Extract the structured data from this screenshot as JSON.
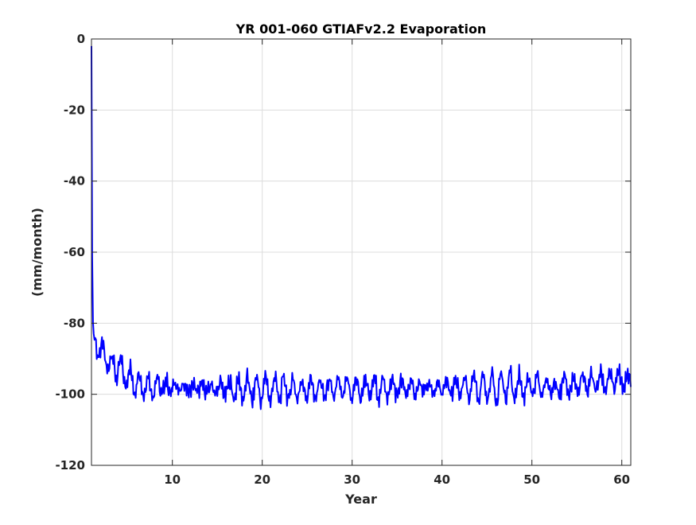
{
  "chart_data": {
    "type": "line",
    "title": "YR 001-060 GTIAFv2.2 Evaporation",
    "xlabel": "Year",
    "ylabel": "(mm/month)",
    "xlim": [
      1,
      61
    ],
    "ylim": [
      -120,
      0
    ],
    "xticks": [
      10,
      20,
      30,
      40,
      50,
      60
    ],
    "yticks": [
      0,
      -20,
      -40,
      -60,
      -80,
      -100,
      -120
    ],
    "grid": true,
    "line_color": "#0000ff",
    "series": [
      {
        "x": [
          1.0,
          1.02,
          1.05,
          1.08,
          1.12,
          1.17,
          1.25,
          1.35,
          1.5,
          1.7,
          2.0,
          2.3,
          2.6,
          3.0,
          3.5,
          4.0,
          4.5,
          5.0,
          5.5,
          6.0,
          6.5,
          7.0,
          7.5,
          8.0,
          8.5,
          9.0,
          9.5,
          10.0,
          11.0,
          12.0,
          13.0,
          14.0,
          15.0,
          16.0,
          17.0,
          18.0,
          19.0,
          20.0,
          21.0,
          22.0,
          23.0,
          24.0,
          25.0,
          26.0,
          27.0,
          28.0,
          29.0,
          30.0,
          31.0,
          32.0,
          33.0,
          34.0,
          35.0,
          36.0,
          37.0,
          38.0,
          39.0,
          40.0,
          41.0,
          42.0,
          43.0,
          44.0,
          45.0,
          46.0,
          47.0,
          48.0,
          49.0,
          50.0,
          51.0,
          52.0,
          53.0,
          54.0,
          55.0,
          56.0,
          57.0,
          58.0,
          59.0,
          60.0,
          61.0
        ],
        "y": [
          -2,
          -10,
          -35,
          -60,
          -75,
          -80,
          -83,
          -85,
          -86,
          -87,
          -88,
          -89,
          -90,
          -91,
          -92,
          -93,
          -94,
          -95,
          -96,
          -96.5,
          -97,
          -97.3,
          -97.5,
          -97.7,
          -97.8,
          -97.9,
          -98,
          -98,
          -98.2,
          -98.3,
          -98.4,
          -98.5,
          -98.5,
          -98.6,
          -98.6,
          -98.6,
          -98.6,
          -98.5,
          -98.5,
          -98.5,
          -98.5,
          -98.5,
          -98.5,
          -98.6,
          -98.6,
          -98.6,
          -98.6,
          -98.5,
          -98.5,
          -98.4,
          -98.3,
          -98.2,
          -98.2,
          -98.2,
          -98.3,
          -98.4,
          -98.4,
          -98.4,
          -98.4,
          -98.3,
          -98.2,
          -98.1,
          -98.0,
          -97.9,
          -97.8,
          -97.8,
          -97.8,
          -97.9,
          -98.0,
          -98.0,
          -97.9,
          -97.7,
          -97.4,
          -97.0,
          -96.6,
          -96.3,
          -96.2,
          -96.3,
          -96.5
        ]
      }
    ]
  }
}
